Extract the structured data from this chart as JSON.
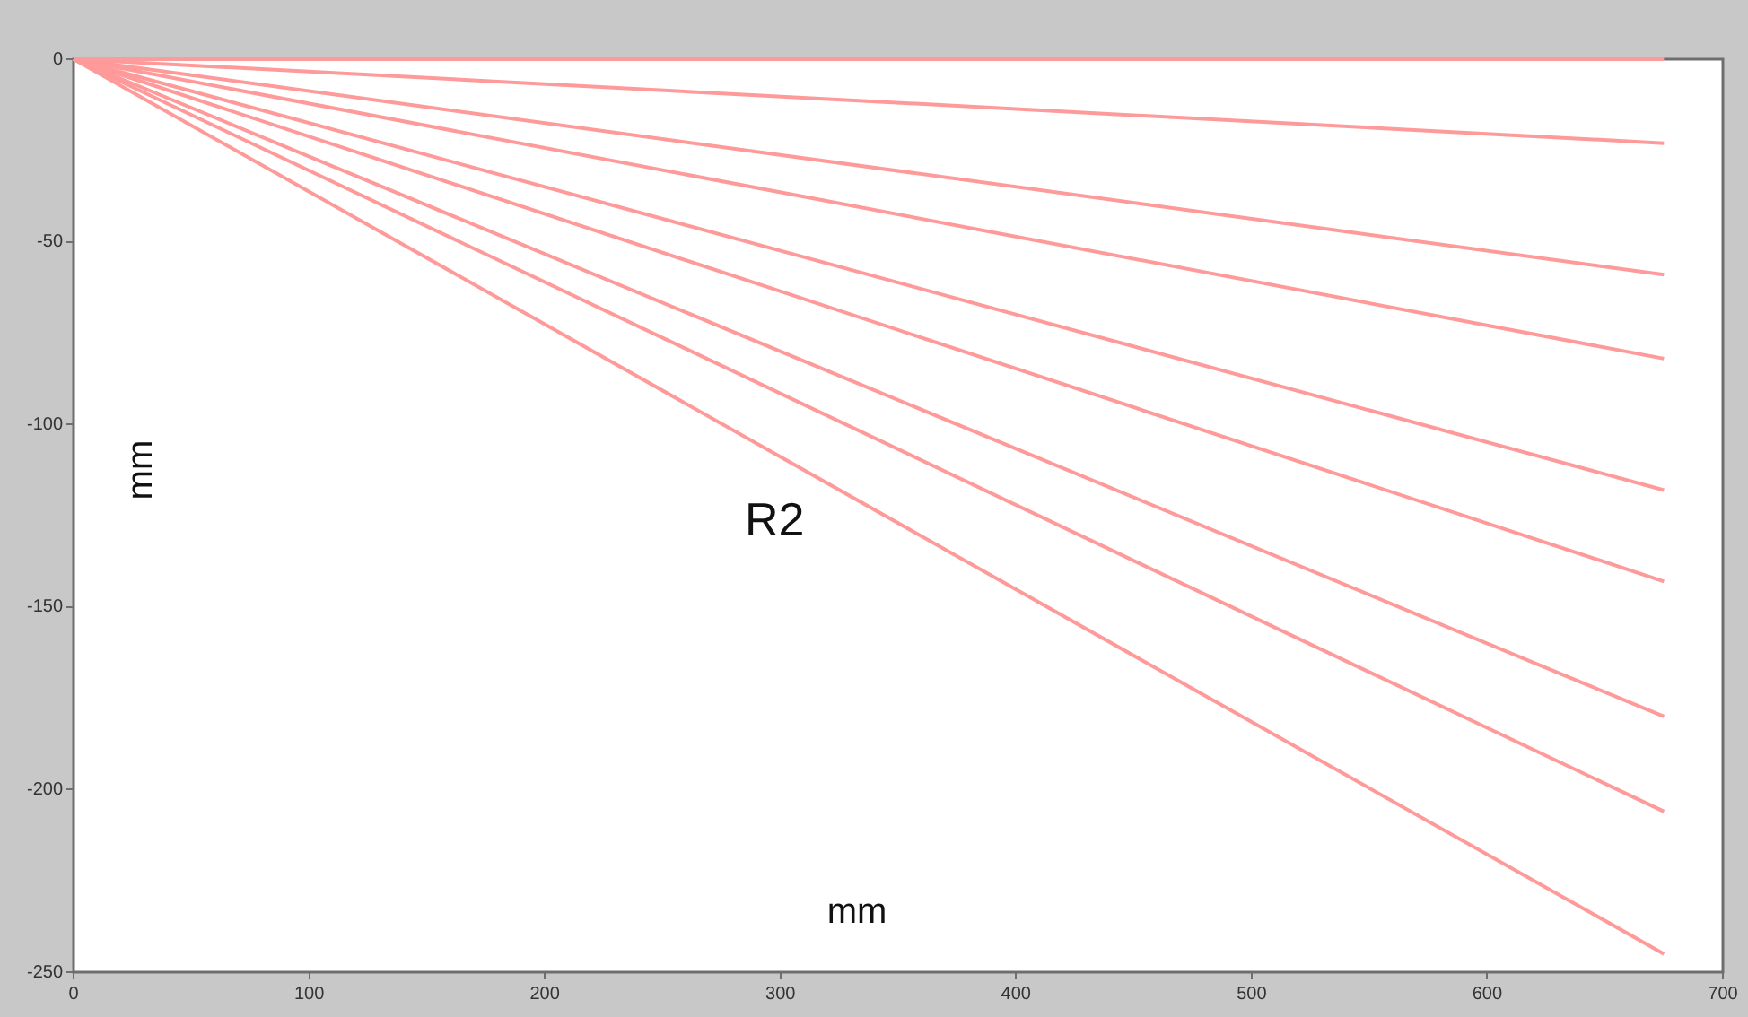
{
  "chart_data": {
    "type": "line",
    "xlabel": "mm",
    "ylabel": "mm",
    "annotations": [
      "R2"
    ],
    "xlim": [
      0,
      700
    ],
    "ylim": [
      -250,
      0
    ],
    "xticks": [
      0,
      100,
      200,
      300,
      400,
      500,
      600,
      700
    ],
    "yticks": [
      -250,
      -200,
      -150,
      -100,
      -50,
      0
    ],
    "grid": false,
    "legend": false,
    "marker": "none",
    "line_style": "solid",
    "x": [
      0,
      675
    ],
    "series": [
      {
        "color": "#ff9a9a",
        "values": [
          0,
          0
        ]
      },
      {
        "color": "#ff9a9a",
        "values": [
          0,
          -23
        ]
      },
      {
        "color": "#ff9a9a",
        "values": [
          0,
          -59
        ]
      },
      {
        "color": "#ff9a9a",
        "values": [
          0,
          -82
        ]
      },
      {
        "color": "#ff9a9a",
        "values": [
          0,
          -118
        ]
      },
      {
        "color": "#ff9a9a",
        "values": [
          0,
          -143
        ]
      },
      {
        "color": "#ff9a9a",
        "values": [
          0,
          -180
        ]
      },
      {
        "color": "#ff9a9a",
        "values": [
          0,
          -206
        ]
      },
      {
        "color": "#ff9a9a",
        "values": [
          0,
          -245
        ]
      }
    ]
  }
}
